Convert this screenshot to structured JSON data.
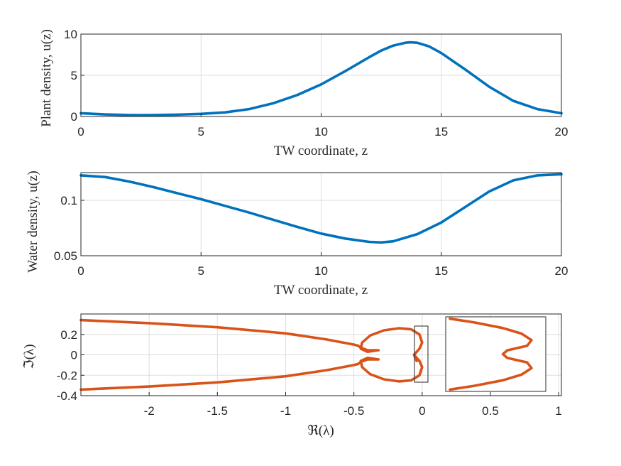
{
  "chart_data": [
    {
      "type": "line",
      "xlabel": "TW coordinate, z",
      "ylabel": "Plant density, u(z)",
      "xlim": [
        0,
        20
      ],
      "ylim": [
        0,
        10
      ],
      "xticks": [
        "0",
        "5",
        "10",
        "15",
        "20"
      ],
      "yticks": [
        "0",
        "5",
        "10"
      ],
      "grid": true,
      "color": "#0072BD",
      "series": [
        {
          "x": [
            0,
            1,
            2,
            2.5,
            3,
            4,
            5,
            6,
            7,
            8,
            9,
            10,
            11,
            12,
            12.5,
            13,
            13.5,
            13.7,
            14,
            14.5,
            15,
            16,
            17,
            18,
            19,
            20
          ],
          "y": [
            0.4,
            0.25,
            0.18,
            0.17,
            0.18,
            0.22,
            0.32,
            0.5,
            0.9,
            1.6,
            2.6,
            3.9,
            5.5,
            7.2,
            8.0,
            8.6,
            8.95,
            9.0,
            8.95,
            8.5,
            7.7,
            5.7,
            3.6,
            1.9,
            0.9,
            0.4
          ]
        }
      ]
    },
    {
      "type": "line",
      "xlabel": "TW coordinate, z",
      "ylabel": "Water density, u(z)",
      "xlim": [
        0,
        20
      ],
      "ylim": [
        0.05,
        0.125
      ],
      "xticks": [
        "0",
        "5",
        "10",
        "15",
        "20"
      ],
      "yticks": [
        "0.05",
        "0.1"
      ],
      "grid": true,
      "color": "#0072BD",
      "series": [
        {
          "x": [
            0,
            1,
            2,
            3,
            4,
            5,
            6,
            7,
            8,
            9,
            10,
            11,
            12,
            12.5,
            13,
            14,
            15,
            16,
            17,
            18,
            19,
            20
          ],
          "y": [
            0.1225,
            0.121,
            0.117,
            0.112,
            0.1065,
            0.101,
            0.095,
            0.089,
            0.0825,
            0.076,
            0.07,
            0.0655,
            0.0625,
            0.062,
            0.063,
            0.0695,
            0.08,
            0.094,
            0.108,
            0.118,
            0.1225,
            0.1235
          ]
        }
      ]
    },
    {
      "type": "line",
      "xlabel": "ℜ(λ)",
      "ylabel": "ℑ(λ)",
      "xlim": [
        -2.5,
        1.02
      ],
      "ylim": [
        -0.4,
        0.4
      ],
      "xticks": [
        "-2",
        "-1.5",
        "-1",
        "-0.5",
        "0",
        "0.5",
        "1"
      ],
      "yticks": [
        "-0.4",
        "-0.2",
        "0",
        "0.2"
      ],
      "grid": true,
      "color": "#D95319",
      "series": [
        {
          "name": "",
          "x": [
            -2.5,
            -2.0,
            -1.5,
            -1.0,
            -0.7,
            -0.5,
            -0.47
          ],
          "y": [
            0.34,
            0.31,
            0.27,
            0.21,
            0.15,
            0.1,
            0.09
          ]
        },
        {
          "name": "",
          "x": [
            -2.5,
            -2.0,
            -1.5,
            -1.0,
            -0.7,
            -0.5,
            -0.47
          ],
          "y": [
            -0.34,
            -0.31,
            -0.27,
            -0.21,
            -0.15,
            -0.1,
            -0.09
          ]
        },
        {
          "name": "",
          "x": [
            -0.47,
            -0.45,
            -0.4,
            -0.32,
            -0.4,
            -0.45,
            -0.44,
            -0.38,
            -0.28,
            -0.17,
            -0.08,
            -0.02,
            0.0,
            -0.02,
            -0.06,
            -0.04,
            -0.06,
            -0.02,
            0.0,
            -0.02,
            -0.08,
            -0.17,
            -0.28,
            -0.38,
            -0.44,
            -0.45,
            -0.4,
            -0.32,
            -0.4,
            -0.45,
            -0.47
          ],
          "y": [
            0.09,
            0.07,
            0.045,
            0.045,
            0.03,
            0.06,
            0.12,
            0.19,
            0.24,
            0.26,
            0.25,
            0.2,
            0.12,
            0.06,
            0.0,
            -0.06,
            0.0,
            -0.06,
            -0.12,
            -0.2,
            -0.25,
            -0.26,
            -0.24,
            -0.19,
            -0.12,
            -0.06,
            -0.03,
            -0.045,
            -0.045,
            -0.07,
            -0.09
          ]
        },
        {
          "name": "",
          "x": [
            0.18,
            0.35,
            0.55,
            0.68,
            0.75,
            0.72,
            0.58,
            0.55,
            0.58,
            0.72,
            0.75,
            0.68,
            0.55,
            0.35,
            0.18
          ],
          "y": [
            0.38,
            0.34,
            0.28,
            0.22,
            0.15,
            0.09,
            0.04,
            0.0,
            -0.04,
            -0.09,
            -0.15,
            -0.22,
            -0.28,
            -0.34,
            -0.38
          ]
        }
      ]
    }
  ]
}
